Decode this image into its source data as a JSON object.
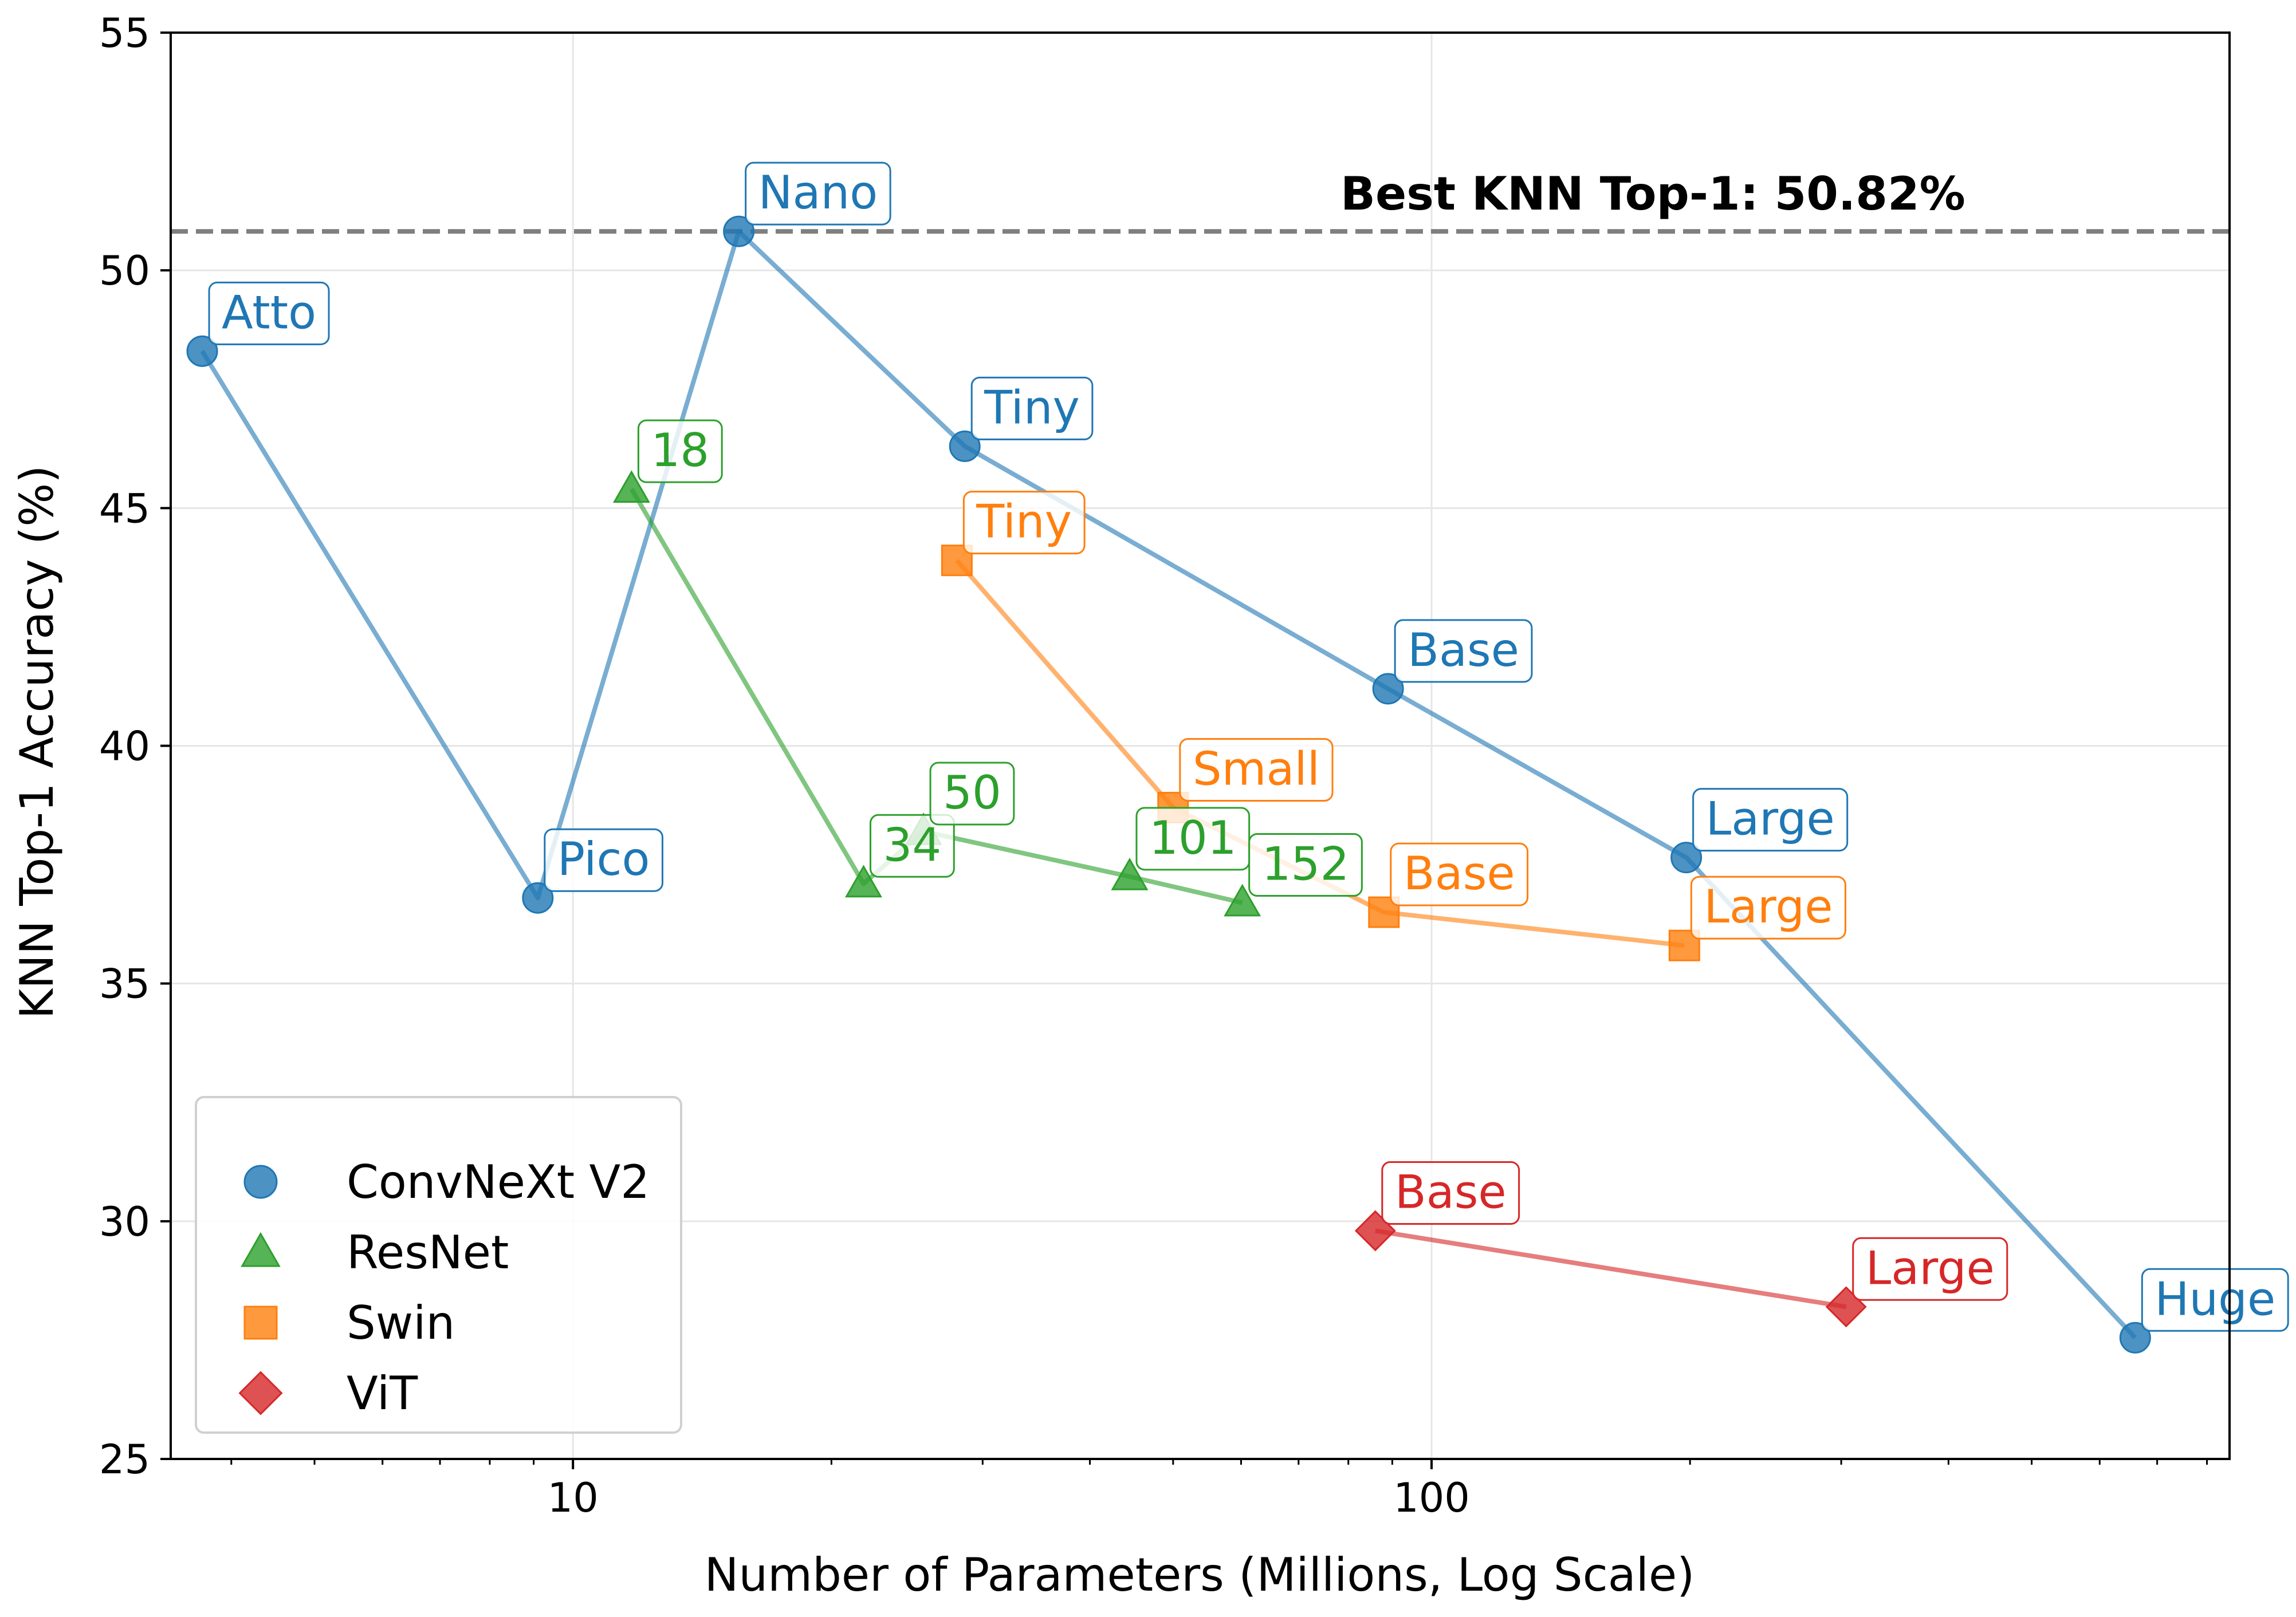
{
  "chart_data": {
    "type": "scatter",
    "title": "",
    "xlabel": "Number of Parameters (Millions, Log Scale)",
    "ylabel": "KNN Top-1 Accuracy (%)",
    "x_scale": "log",
    "xlim": [
      3.4,
      850
    ],
    "ylim": [
      25,
      55
    ],
    "x_ticks": [
      10,
      100
    ],
    "x_tick_labels": [
      "10",
      "100"
    ],
    "y_ticks": [
      25,
      30,
      35,
      40,
      45,
      50,
      55
    ],
    "y_tick_labels": [
      "25",
      "30",
      "35",
      "40",
      "45",
      "50",
      "55"
    ],
    "grid": true,
    "legend_position": "lower-left",
    "reference_line": {
      "y": 50.82,
      "style": "dashed",
      "color": "#7f7f7f",
      "label": "Best KNN Top-1: 50.82%"
    },
    "series": [
      {
        "name": "ConvNeXt V2",
        "marker": "circle",
        "color": "#1f77b4",
        "points": [
          {
            "label": "Atto",
            "x": 3.7,
            "y": 48.3
          },
          {
            "label": "Pico",
            "x": 9.1,
            "y": 36.8
          },
          {
            "label": "Nano",
            "x": 15.6,
            "y": 50.82
          },
          {
            "label": "Tiny",
            "x": 28.6,
            "y": 46.3
          },
          {
            "label": "Base",
            "x": 89,
            "y": 41.2
          },
          {
            "label": "Large",
            "x": 198,
            "y": 37.65
          },
          {
            "label": "Huge",
            "x": 660,
            "y": 27.55
          }
        ]
      },
      {
        "name": "ResNet",
        "marker": "triangle",
        "color": "#2ca02c",
        "points": [
          {
            "label": "18",
            "x": 11.7,
            "y": 45.4
          },
          {
            "label": "34",
            "x": 21.8,
            "y": 37.1
          },
          {
            "label": "50",
            "x": 25.6,
            "y": 38.2
          },
          {
            "label": "101",
            "x": 44.5,
            "y": 37.25
          },
          {
            "label": "152",
            "x": 60.2,
            "y": 36.7
          }
        ]
      },
      {
        "name": "Swin",
        "marker": "square",
        "color": "#ff7f0e",
        "points": [
          {
            "label": "Tiny",
            "x": 28,
            "y": 43.9
          },
          {
            "label": "Small",
            "x": 50,
            "y": 38.7
          },
          {
            "label": "Base",
            "x": 88,
            "y": 36.5
          },
          {
            "label": "Large",
            "x": 197,
            "y": 35.8
          }
        ]
      },
      {
        "name": "ViT",
        "marker": "diamond",
        "color": "#d62728",
        "points": [
          {
            "label": "Base",
            "x": 86,
            "y": 29.8
          },
          {
            "label": "Large",
            "x": 304,
            "y": 28.2
          }
        ]
      }
    ]
  }
}
